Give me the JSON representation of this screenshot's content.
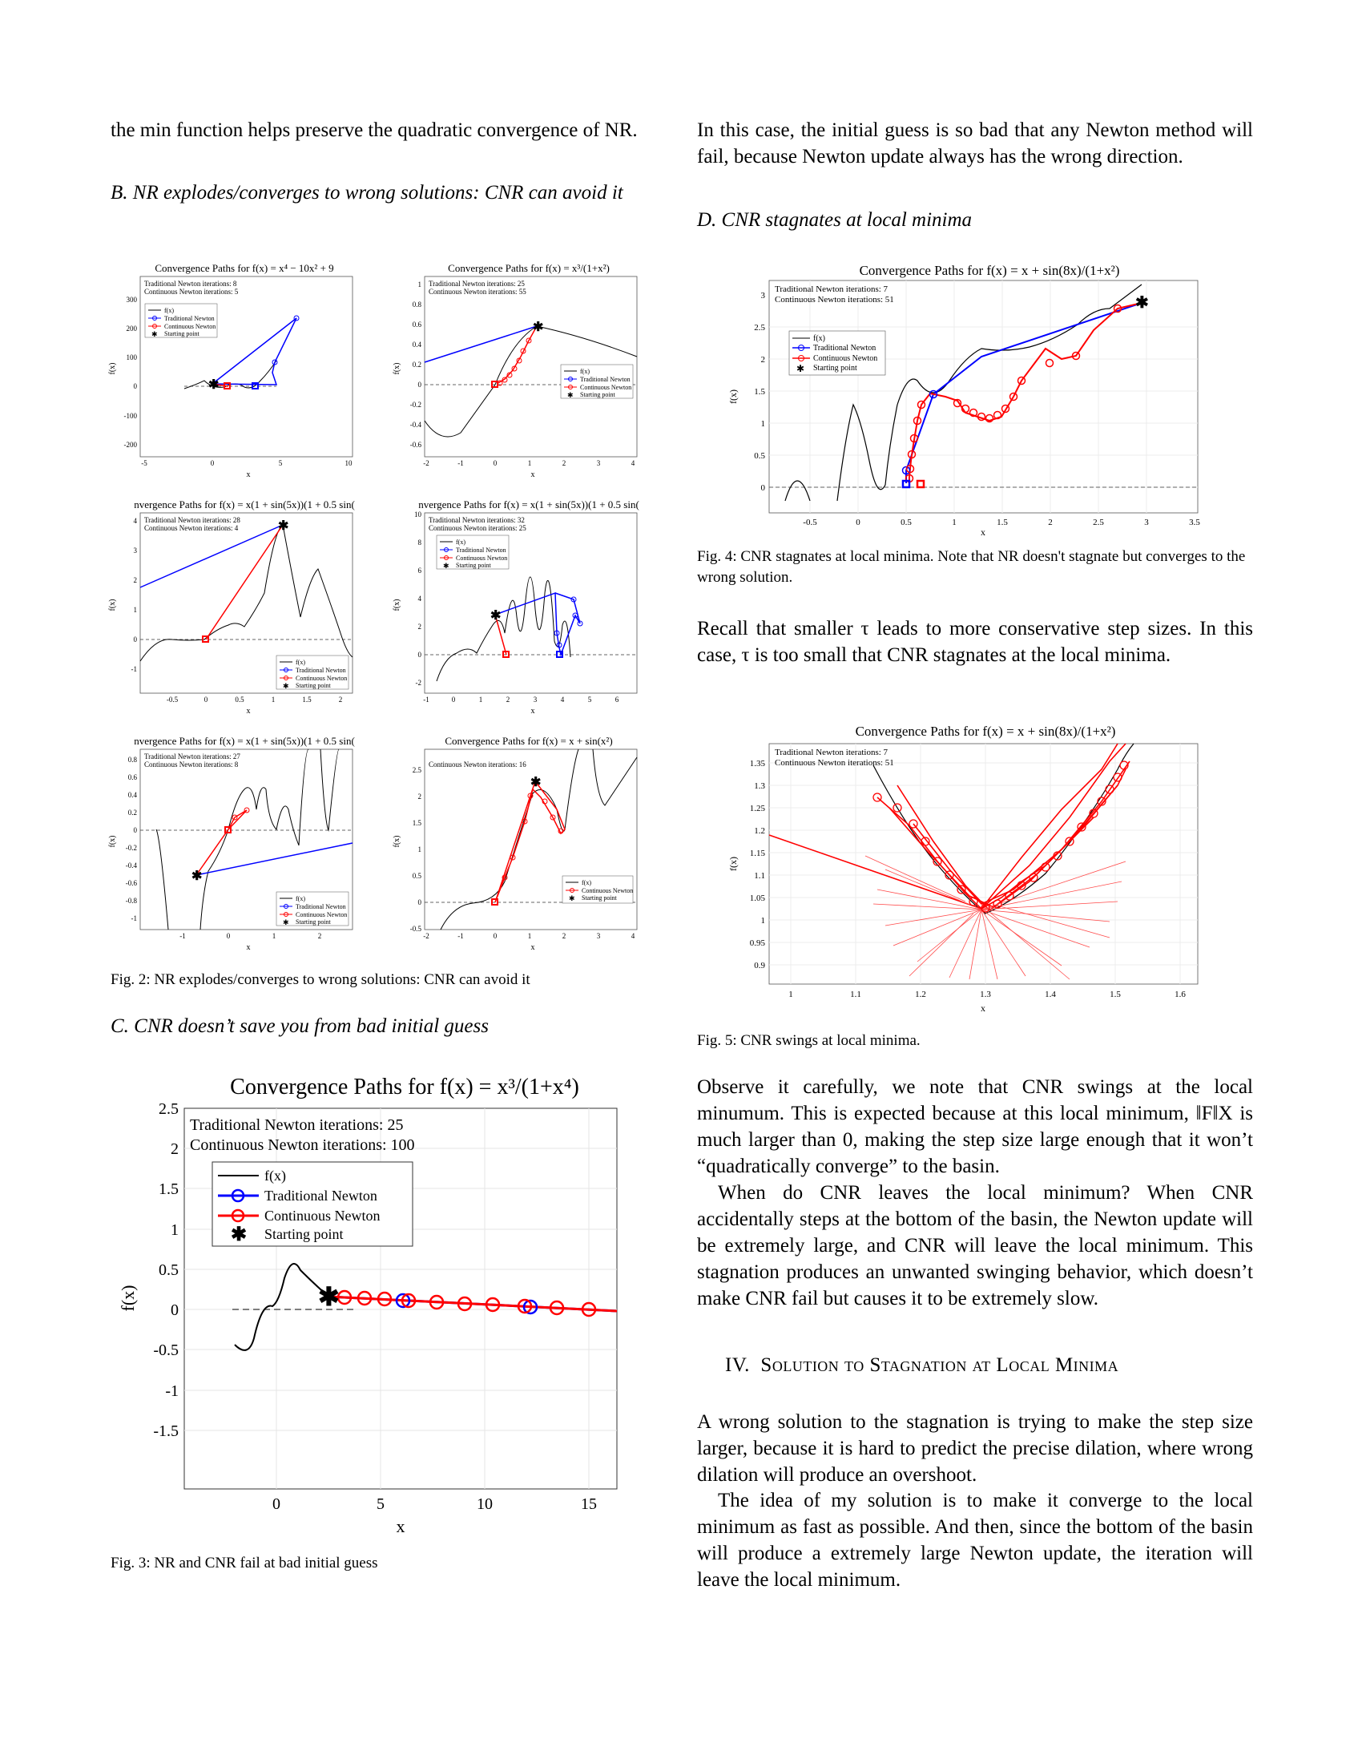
{
  "left": {
    "intro": "the min function helps preserve the quadratic convergence of NR.",
    "secB": "B.  NR explodes/converges to wrong solutions: CNR can avoid it",
    "fig2_caption": "Fig. 2: NR explodes/converges to wrong solutions: CNR can avoid it",
    "secC": "C.  CNR doesn’t save you from bad initial guess",
    "fig3_caption": "Fig. 3: NR and CNR fail at bad initial guess"
  },
  "right": {
    "p1": "In this case, the initial guess is so bad that any Newton method will fail, because Newton update always has the wrong direction.",
    "secD": "D.  CNR stagnates at local minima",
    "fig4_caption": "Fig. 4: CNR stagnates at local minima. Note that NR doesn't stagnate but converges to the wrong solution.",
    "p2": "Recall that smaller τ leads to more conservative step sizes. In this case, τ is too small that CNR stagnates at the local minima.",
    "fig5_caption": "Fig. 5: CNR swings at local minima.",
    "p3": "Observe it carefully, we note that CNR swings at the local minumum. This is expected because at this local minimum, ‖F‖X is much larger than 0, making the step size large enough that it won’t “quadratically converge” to the basin.",
    "p4": "When do CNR leaves the local minimum? When CNR accidentally steps at the bottom of the basin, the Newton update will be extremely large, and CNR will leave the local minimum. This stagnation produces an unwanted swinging behavior, which doesn’t make CNR fail but causes it to be extremely slow.",
    "sec4_num": "IV.",
    "sec4_title": "Solution to Stagnation at Local Minima",
    "p5": "A wrong solution to the stagnation is trying to make the step size larger, because it is hard to predict the precise dilation, where wrong dilation will produce an overshoot.",
    "p6": "The idea of my solution is to make it converge to the local minimum as fast as possible. And then, since the bottom of the basin will produce a extremely large Newton update, the iteration will leave the local minimum."
  },
  "legend": {
    "f": "f(x)",
    "tn": "Traditional Newton",
    "cn": "Continuous Newton",
    "sp": "Starting point"
  },
  "axis": {
    "x": "x",
    "y": "f(x)"
  },
  "plots": {
    "p1": {
      "title": "Convergence Paths for f(x) = x⁴ − 10x² + 9",
      "tn": "Traditional Newton iterations: 8",
      "cn": "Continuous Newton iterations: 5",
      "yt": [
        "300",
        "200",
        "100",
        "0",
        "-100",
        "-200"
      ],
      "xt": [
        "-5",
        "0",
        "5",
        "10"
      ]
    },
    "p2": {
      "title": "Convergence Paths for f(x) = x³/(1+x²)",
      "tn": "Traditional Newton iterations: 25",
      "cn": "Continuous Newton iterations: 55",
      "yt": [
        "1",
        "0.8",
        "0.6",
        "0.4",
        "0.2",
        "0",
        "-0.2",
        "-0.4",
        "-0.6"
      ],
      "xt": [
        "-2",
        "-1",
        "0",
        "1",
        "2",
        "3",
        "4"
      ]
    },
    "p3": {
      "title": "nvergence Paths for f(x) = x(1 + sin(5x))(1 + 0.5 sin(",
      "tn": "Traditional Newton iterations: 28",
      "cn": "Continuous Newton iterations: 4",
      "yt": [
        "4",
        "3",
        "2",
        "1",
        "0",
        "-1"
      ],
      "xt": [
        "-0.5",
        "0",
        "0.5",
        "1",
        "1.5",
        "2"
      ]
    },
    "p4": {
      "title": "nvergence Paths for f(x) = x(1 + sin(5x))(1 + 0.5 sin(",
      "tn": "Traditional Newton iterations: 32",
      "cn": "Continuous Newton iterations: 25",
      "yt": [
        "10",
        "8",
        "6",
        "4",
        "2",
        "0",
        "-2"
      ],
      "xt": [
        "-1",
        "0",
        "1",
        "2",
        "3",
        "4",
        "5",
        "6"
      ]
    },
    "p5": {
      "title": "nvergence Paths for f(x) = x(1 + sin(5x))(1 + 0.5 sin(",
      "tn": "Traditional Newton iterations: 27",
      "cn": "Continuous Newton iterations: 8",
      "yt": [
        "0.8",
        "0.6",
        "0.4",
        "0.2",
        "0",
        "-0.2",
        "-0.4",
        "-0.6",
        "-0.8",
        "-1"
      ],
      "xt": [
        "-1",
        "0",
        "1",
        "2"
      ]
    },
    "p6": {
      "title": "Convergence Paths for f(x) = x + sin(x²)",
      "tn": "",
      "cn": "Continuous Newton iterations: 16",
      "yt": [
        "2.5",
        "2",
        "1.5",
        "1",
        "0.5",
        "0",
        "-0.5"
      ],
      "xt": [
        "-2",
        "-1",
        "0",
        "1",
        "2",
        "3",
        "4"
      ]
    },
    "p7": {
      "title": "Convergence Paths for f(x) = x³/(1+x⁴)",
      "tn": "Traditional Newton iterations: 25",
      "cn": "Continuous Newton iterations: 100",
      "yt": [
        "2.5",
        "2",
        "1.5",
        "1",
        "0.5",
        "0",
        "-0.5",
        "-1",
        "-1.5"
      ],
      "xt": [
        "0",
        "5",
        "10",
        "15"
      ]
    },
    "p8": {
      "title": "Convergence Paths for f(x) = x + sin(8x)/(1+x²)",
      "tn": "Traditional Newton iterations: 7",
      "cn": "Continuous Newton iterations: 51",
      "yt": [
        "3",
        "2.5",
        "2",
        "1.5",
        "1",
        "0.5",
        "0"
      ],
      "xt": [
        "-0.5",
        "0",
        "0.5",
        "1",
        "1.5",
        "2",
        "2.5",
        "3",
        "3.5"
      ]
    },
    "p9": {
      "title": "Convergence Paths for f(x) = x + sin(8x)/(1+x²)",
      "tn": "Traditional Newton iterations: 7",
      "cn": "Continuous Newton iterations: 51",
      "yt": [
        "1.35",
        "1.3",
        "1.25",
        "1.2",
        "1.15",
        "1.1",
        "1.05",
        "1",
        "0.95",
        "0.9"
      ],
      "xt": [
        "1",
        "1.1",
        "1.2",
        "1.3",
        "1.4",
        "1.5",
        "1.6"
      ]
    }
  }
}
